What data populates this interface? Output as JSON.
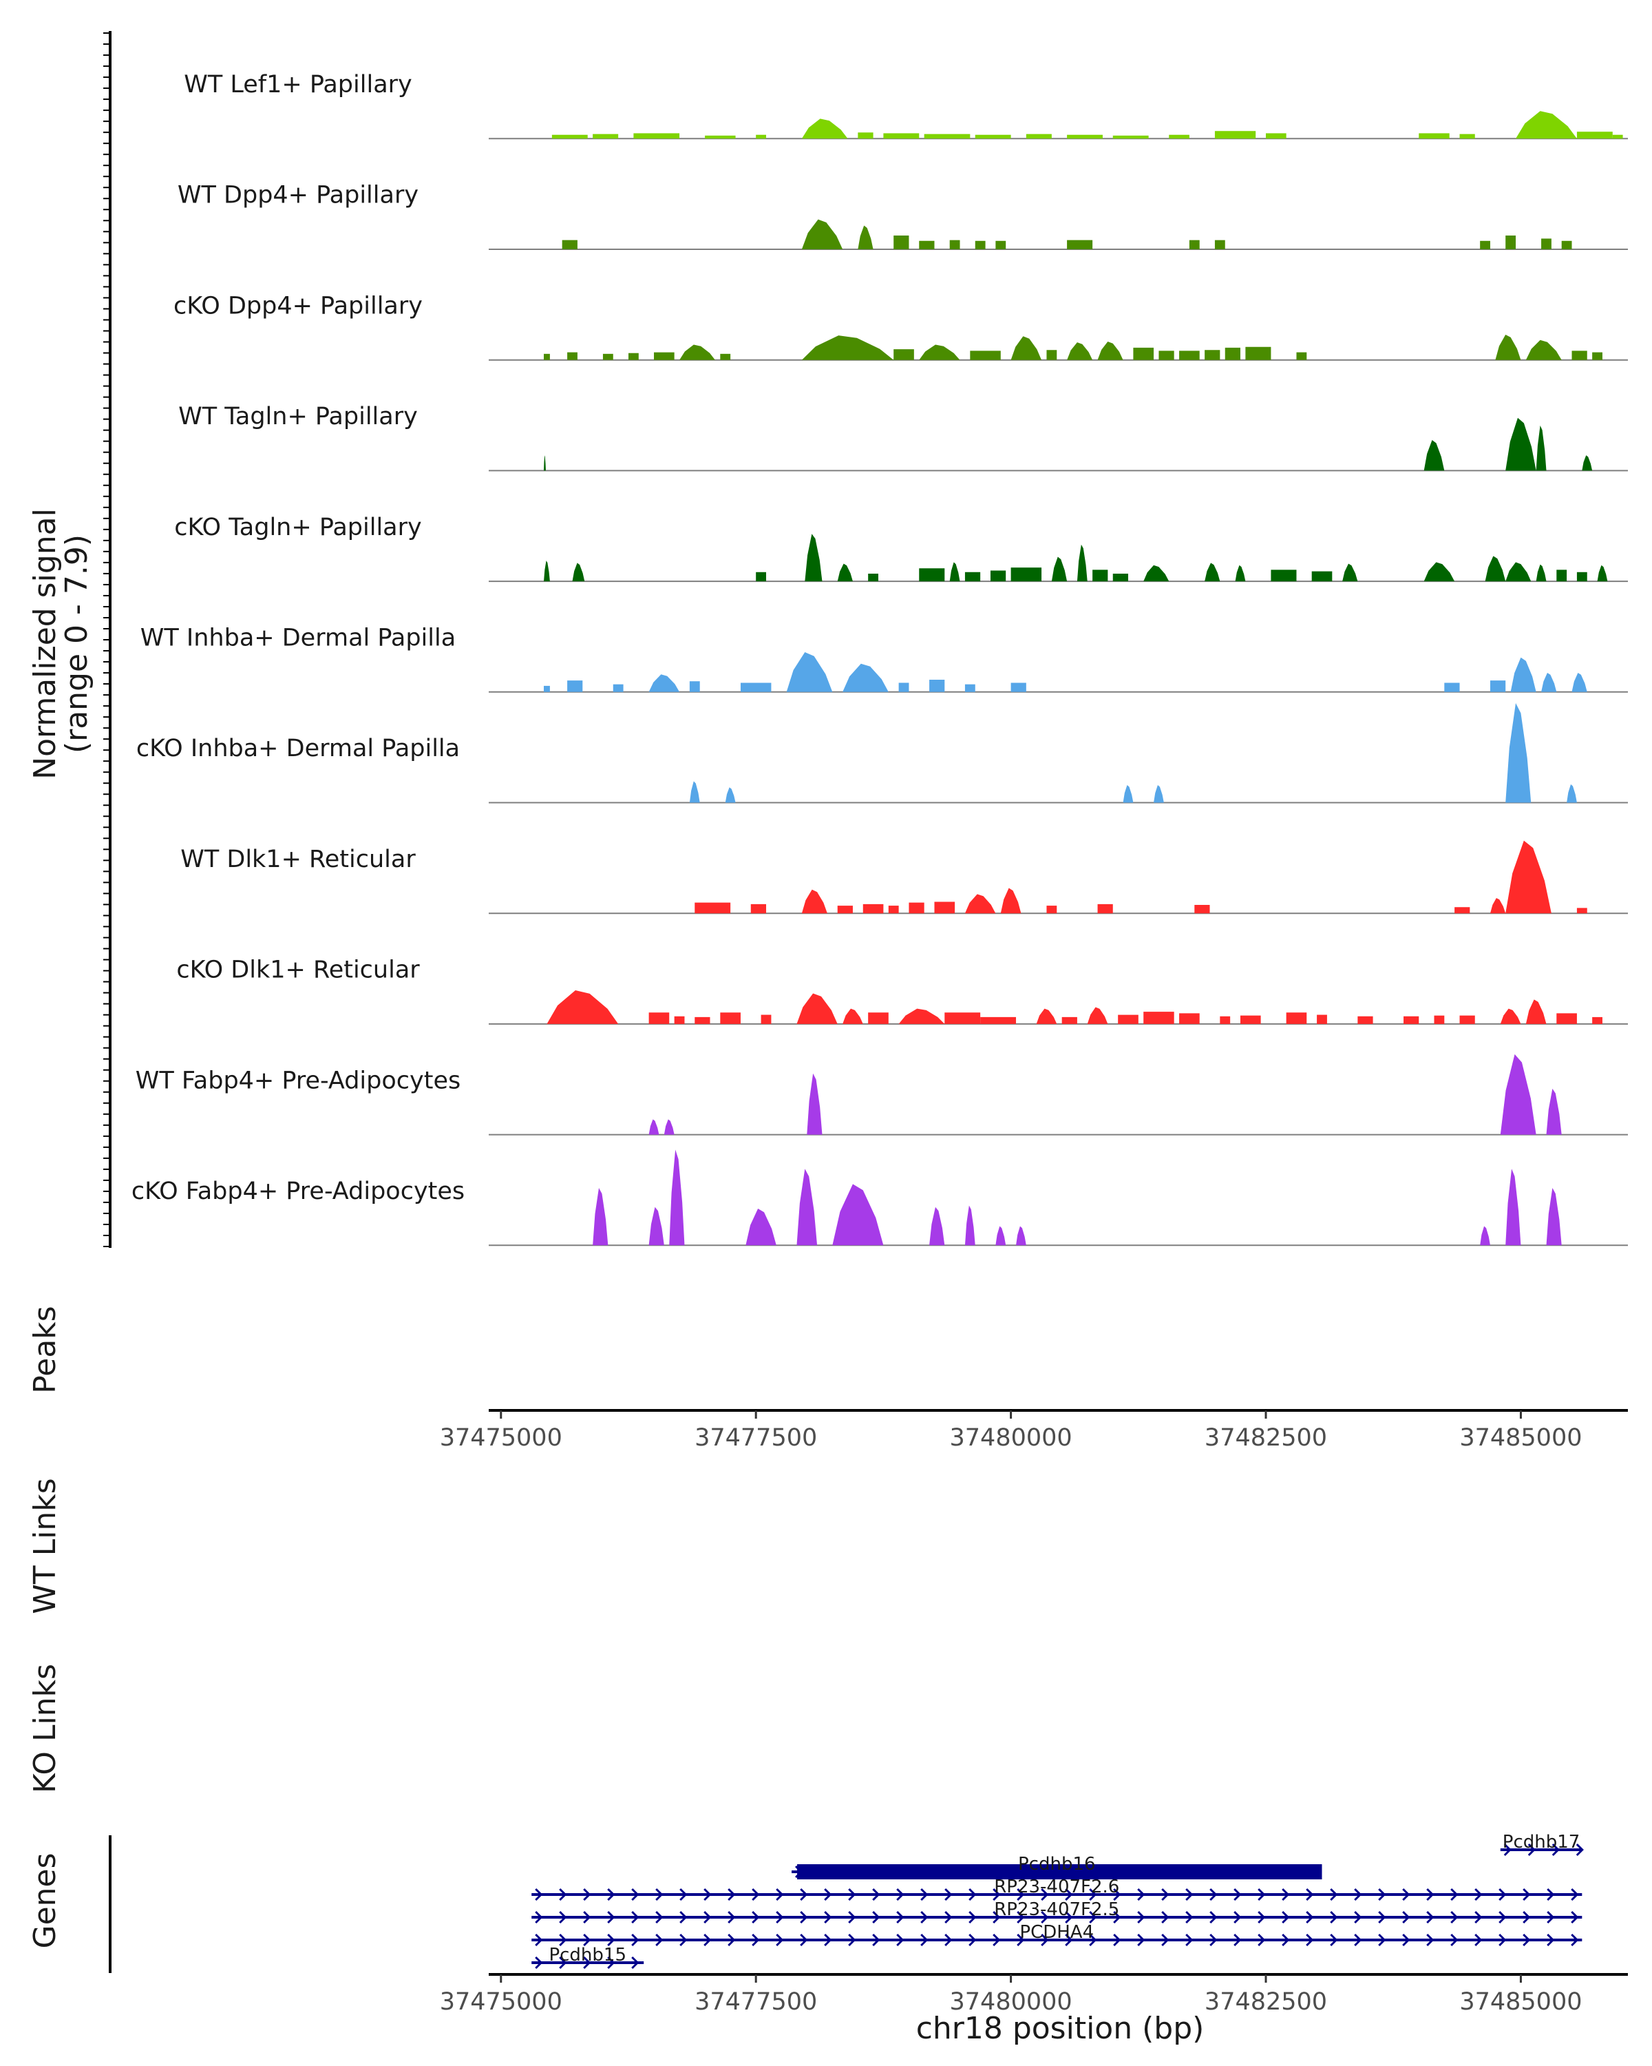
{
  "chart_data": {
    "type": "area",
    "title": "",
    "ylabel": "Normalized signal",
    "ylabel_range": "(range 0 - 7.9)",
    "ylim": [
      0,
      7.9
    ],
    "xlabel": "chr18 position (bp)",
    "xlim": [
      37474880,
      37486050
    ],
    "xticks": [
      37475000,
      37477500,
      37480000,
      37482500,
      37485000
    ],
    "tracks": [
      {
        "name": "WT Lef1+ Papillary",
        "color": "#7fd400",
        "blocks": [
          [
            37475500,
            37475850,
            0.5
          ],
          [
            37475900,
            37476150,
            0.6
          ],
          [
            37476300,
            37476750,
            0.7
          ],
          [
            37477000,
            37477300,
            0.4
          ],
          [
            37477500,
            37477600,
            0.5
          ],
          [
            37477950,
            37478400,
            2.6
          ],
          [
            37478500,
            37478650,
            0.8
          ],
          [
            37478750,
            37479100,
            0.7
          ],
          [
            37479150,
            37479600,
            0.6
          ],
          [
            37479650,
            37480000,
            0.5
          ],
          [
            37480150,
            37480400,
            0.6
          ],
          [
            37480550,
            37480900,
            0.5
          ],
          [
            37481000,
            37481350,
            0.4
          ],
          [
            37481550,
            37481750,
            0.5
          ],
          [
            37482000,
            37482400,
            1.0
          ],
          [
            37482500,
            37482700,
            0.7
          ],
          [
            37484000,
            37484300,
            0.7
          ],
          [
            37484400,
            37484550,
            0.6
          ],
          [
            37484950,
            37485550,
            3.6
          ],
          [
            37485550,
            37485900,
            0.9
          ],
          [
            37485900,
            37486000,
            0.5
          ]
        ]
      },
      {
        "name": "WT Dpp4+ Papillary",
        "color": "#4a8c00",
        "blocks": [
          [
            37475600,
            37475750,
            1.2
          ],
          [
            37477950,
            37478350,
            3.9
          ],
          [
            37478500,
            37478650,
            3.1
          ],
          [
            37478850,
            37479000,
            1.8
          ],
          [
            37479100,
            37479250,
            1.1
          ],
          [
            37479400,
            37479500,
            1.2
          ],
          [
            37479650,
            37479750,
            1.1
          ],
          [
            37479850,
            37479950,
            1.1
          ],
          [
            37480550,
            37480800,
            1.2
          ],
          [
            37481750,
            37481850,
            1.2
          ],
          [
            37482000,
            37482100,
            1.2
          ],
          [
            37484600,
            37484700,
            1.1
          ],
          [
            37484850,
            37484950,
            1.8
          ],
          [
            37485200,
            37485300,
            1.4
          ],
          [
            37485400,
            37485500,
            1.1
          ]
        ]
      },
      {
        "name": "cKO Dpp4+ Papillary",
        "color": "#4a8c00",
        "blocks": [
          [
            37475420,
            37475480,
            0.8
          ],
          [
            37475650,
            37475750,
            1.0
          ],
          [
            37476000,
            37476100,
            0.8
          ],
          [
            37476250,
            37476350,
            0.9
          ],
          [
            37476500,
            37476700,
            1.0
          ],
          [
            37476750,
            37477100,
            2.0
          ],
          [
            37477150,
            37477250,
            0.8
          ],
          [
            37477950,
            37478850,
            3.2
          ],
          [
            37478850,
            37479050,
            1.4
          ],
          [
            37479100,
            37479500,
            2.0
          ],
          [
            37479600,
            37479900,
            1.2
          ],
          [
            37480000,
            37480300,
            3.1
          ],
          [
            37480350,
            37480450,
            1.3
          ],
          [
            37480550,
            37480800,
            2.3
          ],
          [
            37480850,
            37481100,
            2.4
          ],
          [
            37481200,
            37481400,
            1.6
          ],
          [
            37481450,
            37481600,
            1.2
          ],
          [
            37481650,
            37481850,
            1.2
          ],
          [
            37481900,
            37482050,
            1.3
          ],
          [
            37482100,
            37482250,
            1.6
          ],
          [
            37482300,
            37482550,
            1.7
          ],
          [
            37482800,
            37482900,
            1.0
          ],
          [
            37484750,
            37485000,
            3.3
          ],
          [
            37485050,
            37485400,
            2.6
          ],
          [
            37485500,
            37485650,
            1.2
          ],
          [
            37485700,
            37485800,
            1.0
          ]
        ]
      },
      {
        "name": "WT Tagln+ Papillary",
        "color": "#006400",
        "blocks": [
          [
            37475420,
            37475440,
            2.0
          ],
          [
            37484050,
            37484250,
            4.0
          ],
          [
            37484850,
            37485150,
            6.9
          ],
          [
            37485150,
            37485250,
            5.9
          ],
          [
            37485600,
            37485700,
            2.0
          ]
        ]
      },
      {
        "name": "cKO Tagln+ Papillary",
        "color": "#006400",
        "blocks": [
          [
            37475420,
            37475480,
            2.7
          ],
          [
            37475700,
            37475820,
            2.4
          ],
          [
            37477500,
            37477600,
            1.2
          ],
          [
            37477980,
            37478150,
            6.2
          ],
          [
            37478300,
            37478450,
            2.3
          ],
          [
            37478600,
            37478700,
            1.0
          ],
          [
            37479100,
            37479350,
            1.7
          ],
          [
            37479400,
            37479500,
            2.5
          ],
          [
            37479550,
            37479700,
            1.2
          ],
          [
            37479800,
            37479950,
            1.4
          ],
          [
            37480000,
            37480300,
            1.8
          ],
          [
            37480400,
            37480550,
            3.2
          ],
          [
            37480650,
            37480750,
            4.8
          ],
          [
            37480800,
            37480950,
            1.5
          ],
          [
            37481000,
            37481150,
            1.0
          ],
          [
            37481300,
            37481550,
            2.1
          ],
          [
            37481900,
            37482050,
            2.4
          ],
          [
            37482200,
            37482300,
            2.1
          ],
          [
            37482550,
            37482800,
            1.5
          ],
          [
            37482950,
            37483150,
            1.3
          ],
          [
            37483250,
            37483400,
            2.3
          ],
          [
            37484050,
            37484350,
            2.5
          ],
          [
            37484650,
            37484850,
            3.3
          ],
          [
            37484850,
            37485100,
            2.5
          ],
          [
            37485150,
            37485250,
            2.2
          ],
          [
            37485350,
            37485450,
            1.5
          ],
          [
            37485550,
            37485650,
            1.2
          ],
          [
            37485750,
            37485850,
            2.1
          ]
        ]
      },
      {
        "name": "WT Inhba+ Dermal Papilla",
        "color": "#56a6e8",
        "blocks": [
          [
            37475420,
            37475480,
            0.8
          ],
          [
            37475650,
            37475800,
            1.5
          ],
          [
            37476100,
            37476200,
            1.0
          ],
          [
            37476450,
            37476750,
            2.3
          ],
          [
            37476850,
            37476950,
            1.4
          ],
          [
            37477350,
            37477650,
            1.2
          ],
          [
            37477800,
            37478250,
            5.2
          ],
          [
            37478350,
            37478800,
            3.7
          ],
          [
            37478900,
            37479000,
            1.2
          ],
          [
            37479200,
            37479350,
            1.6
          ],
          [
            37479550,
            37479650,
            1.0
          ],
          [
            37480000,
            37480150,
            1.2
          ],
          [
            37484250,
            37484400,
            1.2
          ],
          [
            37484700,
            37484850,
            1.5
          ],
          [
            37484900,
            37485150,
            4.5
          ],
          [
            37485200,
            37485350,
            2.5
          ],
          [
            37485500,
            37485650,
            2.5
          ]
        ]
      },
      {
        "name": "cKO Inhba+ Dermal Papilla",
        "color": "#56a6e8",
        "blocks": [
          [
            37476850,
            37476950,
            2.8
          ],
          [
            37477200,
            37477300,
            2.0
          ],
          [
            37481100,
            37481200,
            2.3
          ],
          [
            37481400,
            37481500,
            2.3
          ],
          [
            37484850,
            37485100,
            13.0
          ],
          [
            37485450,
            37485550,
            2.4
          ]
        ]
      },
      {
        "name": "WT Dlk1+ Reticular",
        "color": "#ff2a2a",
        "blocks": [
          [
            37476900,
            37477250,
            1.4
          ],
          [
            37477450,
            37477600,
            1.2
          ],
          [
            37477950,
            37478200,
            3.1
          ],
          [
            37478300,
            37478450,
            1.0
          ],
          [
            37478550,
            37478750,
            1.2
          ],
          [
            37478800,
            37478900,
            1.0
          ],
          [
            37479000,
            37479150,
            1.4
          ],
          [
            37479250,
            37479450,
            1.5
          ],
          [
            37479550,
            37479850,
            2.5
          ],
          [
            37479900,
            37480100,
            3.3
          ],
          [
            37480350,
            37480450,
            1.0
          ],
          [
            37480850,
            37481000,
            1.2
          ],
          [
            37481800,
            37481950,
            1.1
          ],
          [
            37484350,
            37484500,
            0.8
          ],
          [
            37484700,
            37484850,
            2.0
          ],
          [
            37484850,
            37485300,
            9.5
          ],
          [
            37485550,
            37485650,
            0.7
          ]
        ]
      },
      {
        "name": "cKO Dlk1+ Reticular",
        "color": "#ff2a2a",
        "blocks": [
          [
            37475450,
            37476150,
            4.4
          ],
          [
            37476450,
            37476650,
            1.5
          ],
          [
            37476700,
            37476800,
            1.0
          ],
          [
            37476900,
            37477050,
            0.9
          ],
          [
            37477150,
            37477350,
            1.5
          ],
          [
            37477550,
            37477650,
            1.2
          ],
          [
            37477900,
            37478300,
            4.0
          ],
          [
            37478350,
            37478550,
            2.0
          ],
          [
            37478600,
            37478800,
            1.5
          ],
          [
            37478900,
            37479350,
            2.0
          ],
          [
            37479350,
            37479700,
            1.5
          ],
          [
            37479700,
            37480050,
            0.9
          ],
          [
            37480250,
            37480450,
            2.0
          ],
          [
            37480500,
            37480650,
            0.9
          ],
          [
            37480750,
            37480950,
            2.2
          ],
          [
            37481050,
            37481250,
            1.2
          ],
          [
            37481300,
            37481600,
            1.6
          ],
          [
            37481650,
            37481850,
            1.4
          ],
          [
            37482050,
            37482150,
            1.0
          ],
          [
            37482250,
            37482450,
            1.1
          ],
          [
            37482700,
            37482900,
            1.5
          ],
          [
            37483000,
            37483100,
            1.2
          ],
          [
            37483400,
            37483550,
            1.0
          ],
          [
            37483850,
            37484000,
            1.0
          ],
          [
            37484150,
            37484250,
            1.1
          ],
          [
            37484400,
            37484550,
            1.1
          ],
          [
            37484800,
            37485000,
            2.0
          ],
          [
            37485050,
            37485250,
            3.2
          ],
          [
            37485350,
            37485550,
            1.4
          ],
          [
            37485700,
            37485800,
            0.9
          ]
        ]
      },
      {
        "name": "WT Fabp4+ Pre-Adipocytes",
        "color": "#a63be8",
        "blocks": [
          [
            37476450,
            37476550,
            2.0
          ],
          [
            37476600,
            37476700,
            2.0
          ],
          [
            37478000,
            37478150,
            8.0
          ],
          [
            37484800,
            37485150,
            10.5
          ],
          [
            37485250,
            37485400,
            6.0
          ]
        ]
      },
      {
        "name": "cKO Fabp4+ Pre-Adipocytes",
        "color": "#a63be8",
        "blocks": [
          [
            37475900,
            37476050,
            7.5
          ],
          [
            37476450,
            37476600,
            5.0
          ],
          [
            37476650,
            37476800,
            12.5
          ],
          [
            37477400,
            37477700,
            4.8
          ],
          [
            37477900,
            37478100,
            10.0
          ],
          [
            37478250,
            37478750,
            8.0
          ],
          [
            37479200,
            37479350,
            5.0
          ],
          [
            37479550,
            37479650,
            5.2
          ],
          [
            37479850,
            37479950,
            2.5
          ],
          [
            37480050,
            37480150,
            2.5
          ],
          [
            37484600,
            37484700,
            2.5
          ],
          [
            37484850,
            37485000,
            10.0
          ],
          [
            37485250,
            37485400,
            7.5
          ]
        ]
      }
    ],
    "panels": [
      {
        "name": "Peaks"
      },
      {
        "name": "WT Links"
      },
      {
        "name": "KO Links"
      },
      {
        "name": "Genes"
      }
    ],
    "genes": [
      {
        "name": "Pcdhb17",
        "start": 37484800,
        "end": 37485600,
        "row": 0,
        "thick": false
      },
      {
        "name": "Pcdhb16",
        "start": 37477850,
        "end": 37483050,
        "row": 1,
        "thick": true
      },
      {
        "name": "RP23-407F2.6",
        "start": 37475300,
        "end": 37485600,
        "row": 2,
        "thick": false
      },
      {
        "name": "RP23-407F2.5",
        "start": 37475300,
        "end": 37485600,
        "row": 3,
        "thick": false
      },
      {
        "name": "PCDHA4",
        "start": 37475300,
        "end": 37485600,
        "row": 4,
        "thick": false
      },
      {
        "name": "Pcdhb15",
        "start": 37475300,
        "end": 37476400,
        "row": 5,
        "thick": false
      }
    ],
    "gene_color": "#00008b",
    "baseline_color": "#7f7f7f"
  }
}
